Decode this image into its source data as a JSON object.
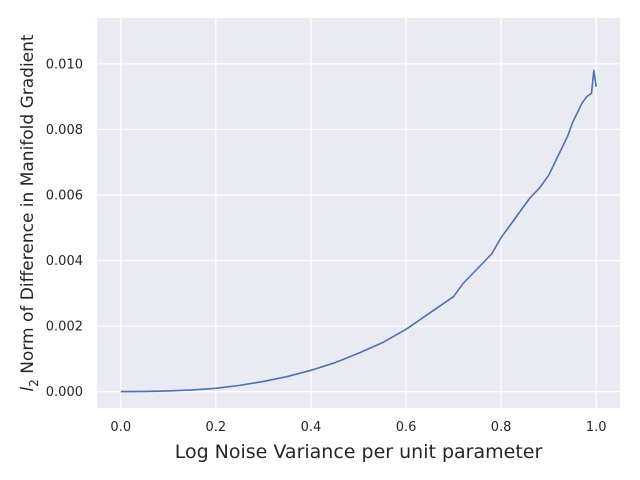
{
  "chart_data": {
    "type": "line",
    "title": "",
    "xlabel": "Log Noise Variance per unit parameter",
    "ylabel": {
      "prefix": "l",
      "subscript": "2",
      "rest": " Norm of Difference in Manifold Gradient"
    },
    "xlim": [
      -0.05,
      1.05
    ],
    "ylim": [
      -0.0005,
      0.0114
    ],
    "xticks": [
      0.0,
      0.2,
      0.4,
      0.6,
      0.8,
      1.0
    ],
    "xtick_labels": [
      "0.0",
      "0.2",
      "0.4",
      "0.6",
      "0.8",
      "1.0"
    ],
    "yticks": [
      0.0,
      0.002,
      0.004,
      0.006,
      0.008,
      0.01
    ],
    "ytick_labels": [
      "0.000",
      "0.002",
      "0.004",
      "0.006",
      "0.008",
      "0.010"
    ],
    "grid": true,
    "legend": false,
    "style": "seaborn-darkgrid",
    "colors": {
      "background": "#eaeaf2",
      "grid": "#ffffff",
      "line": "#4c72b0"
    },
    "series": [
      {
        "x": [
          0.0,
          0.05,
          0.1,
          0.15,
          0.2,
          0.25,
          0.3,
          0.35,
          0.4,
          0.45,
          0.5,
          0.55,
          0.6,
          0.65,
          0.7,
          0.72,
          0.74,
          0.76,
          0.78,
          0.8,
          0.82,
          0.84,
          0.86,
          0.88,
          0.9,
          0.91,
          0.92,
          0.93,
          0.94,
          0.95,
          0.96,
          0.97,
          0.98,
          0.99,
          0.995,
          1.0
        ],
        "y": [
          0.0,
          5e-06,
          2e-05,
          5e-05,
          0.0001,
          0.00019,
          0.00031,
          0.00046,
          0.00065,
          0.00088,
          0.00117,
          0.00149,
          0.0019,
          0.0024,
          0.0029,
          0.0033,
          0.0036,
          0.0039,
          0.0042,
          0.0047,
          0.0051,
          0.0055,
          0.0059,
          0.0062,
          0.0066,
          0.0069,
          0.0072,
          0.0075,
          0.0078,
          0.0082,
          0.0085,
          0.0088,
          0.009,
          0.0091,
          0.0098,
          0.0093
        ]
      }
    ]
  }
}
